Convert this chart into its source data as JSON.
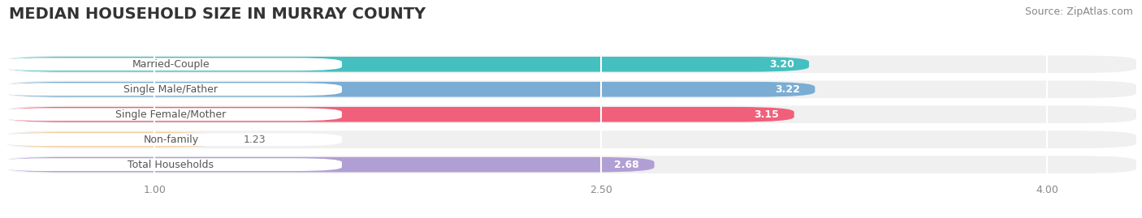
{
  "title": "MEDIAN HOUSEHOLD SIZE IN MURRAY COUNTY",
  "source": "Source: ZipAtlas.com",
  "categories": [
    "Married-Couple",
    "Single Male/Father",
    "Single Female/Mother",
    "Non-family",
    "Total Households"
  ],
  "values": [
    3.2,
    3.22,
    3.15,
    1.23,
    2.68
  ],
  "bar_colors": [
    "#45bfbf",
    "#7badd4",
    "#f0607a",
    "#f5cfa0",
    "#b09fd4"
  ],
  "label_text_colors": [
    "#555555",
    "#555555",
    "#555555",
    "#888855",
    "#555555"
  ],
  "background_color": "#ffffff",
  "bar_background_color": "#f0f0f0",
  "xlim": [
    0.5,
    4.3
  ],
  "xticks": [
    1.0,
    2.5,
    4.0
  ],
  "title_fontsize": 14,
  "source_fontsize": 9,
  "label_fontsize": 9,
  "value_fontsize": 9
}
